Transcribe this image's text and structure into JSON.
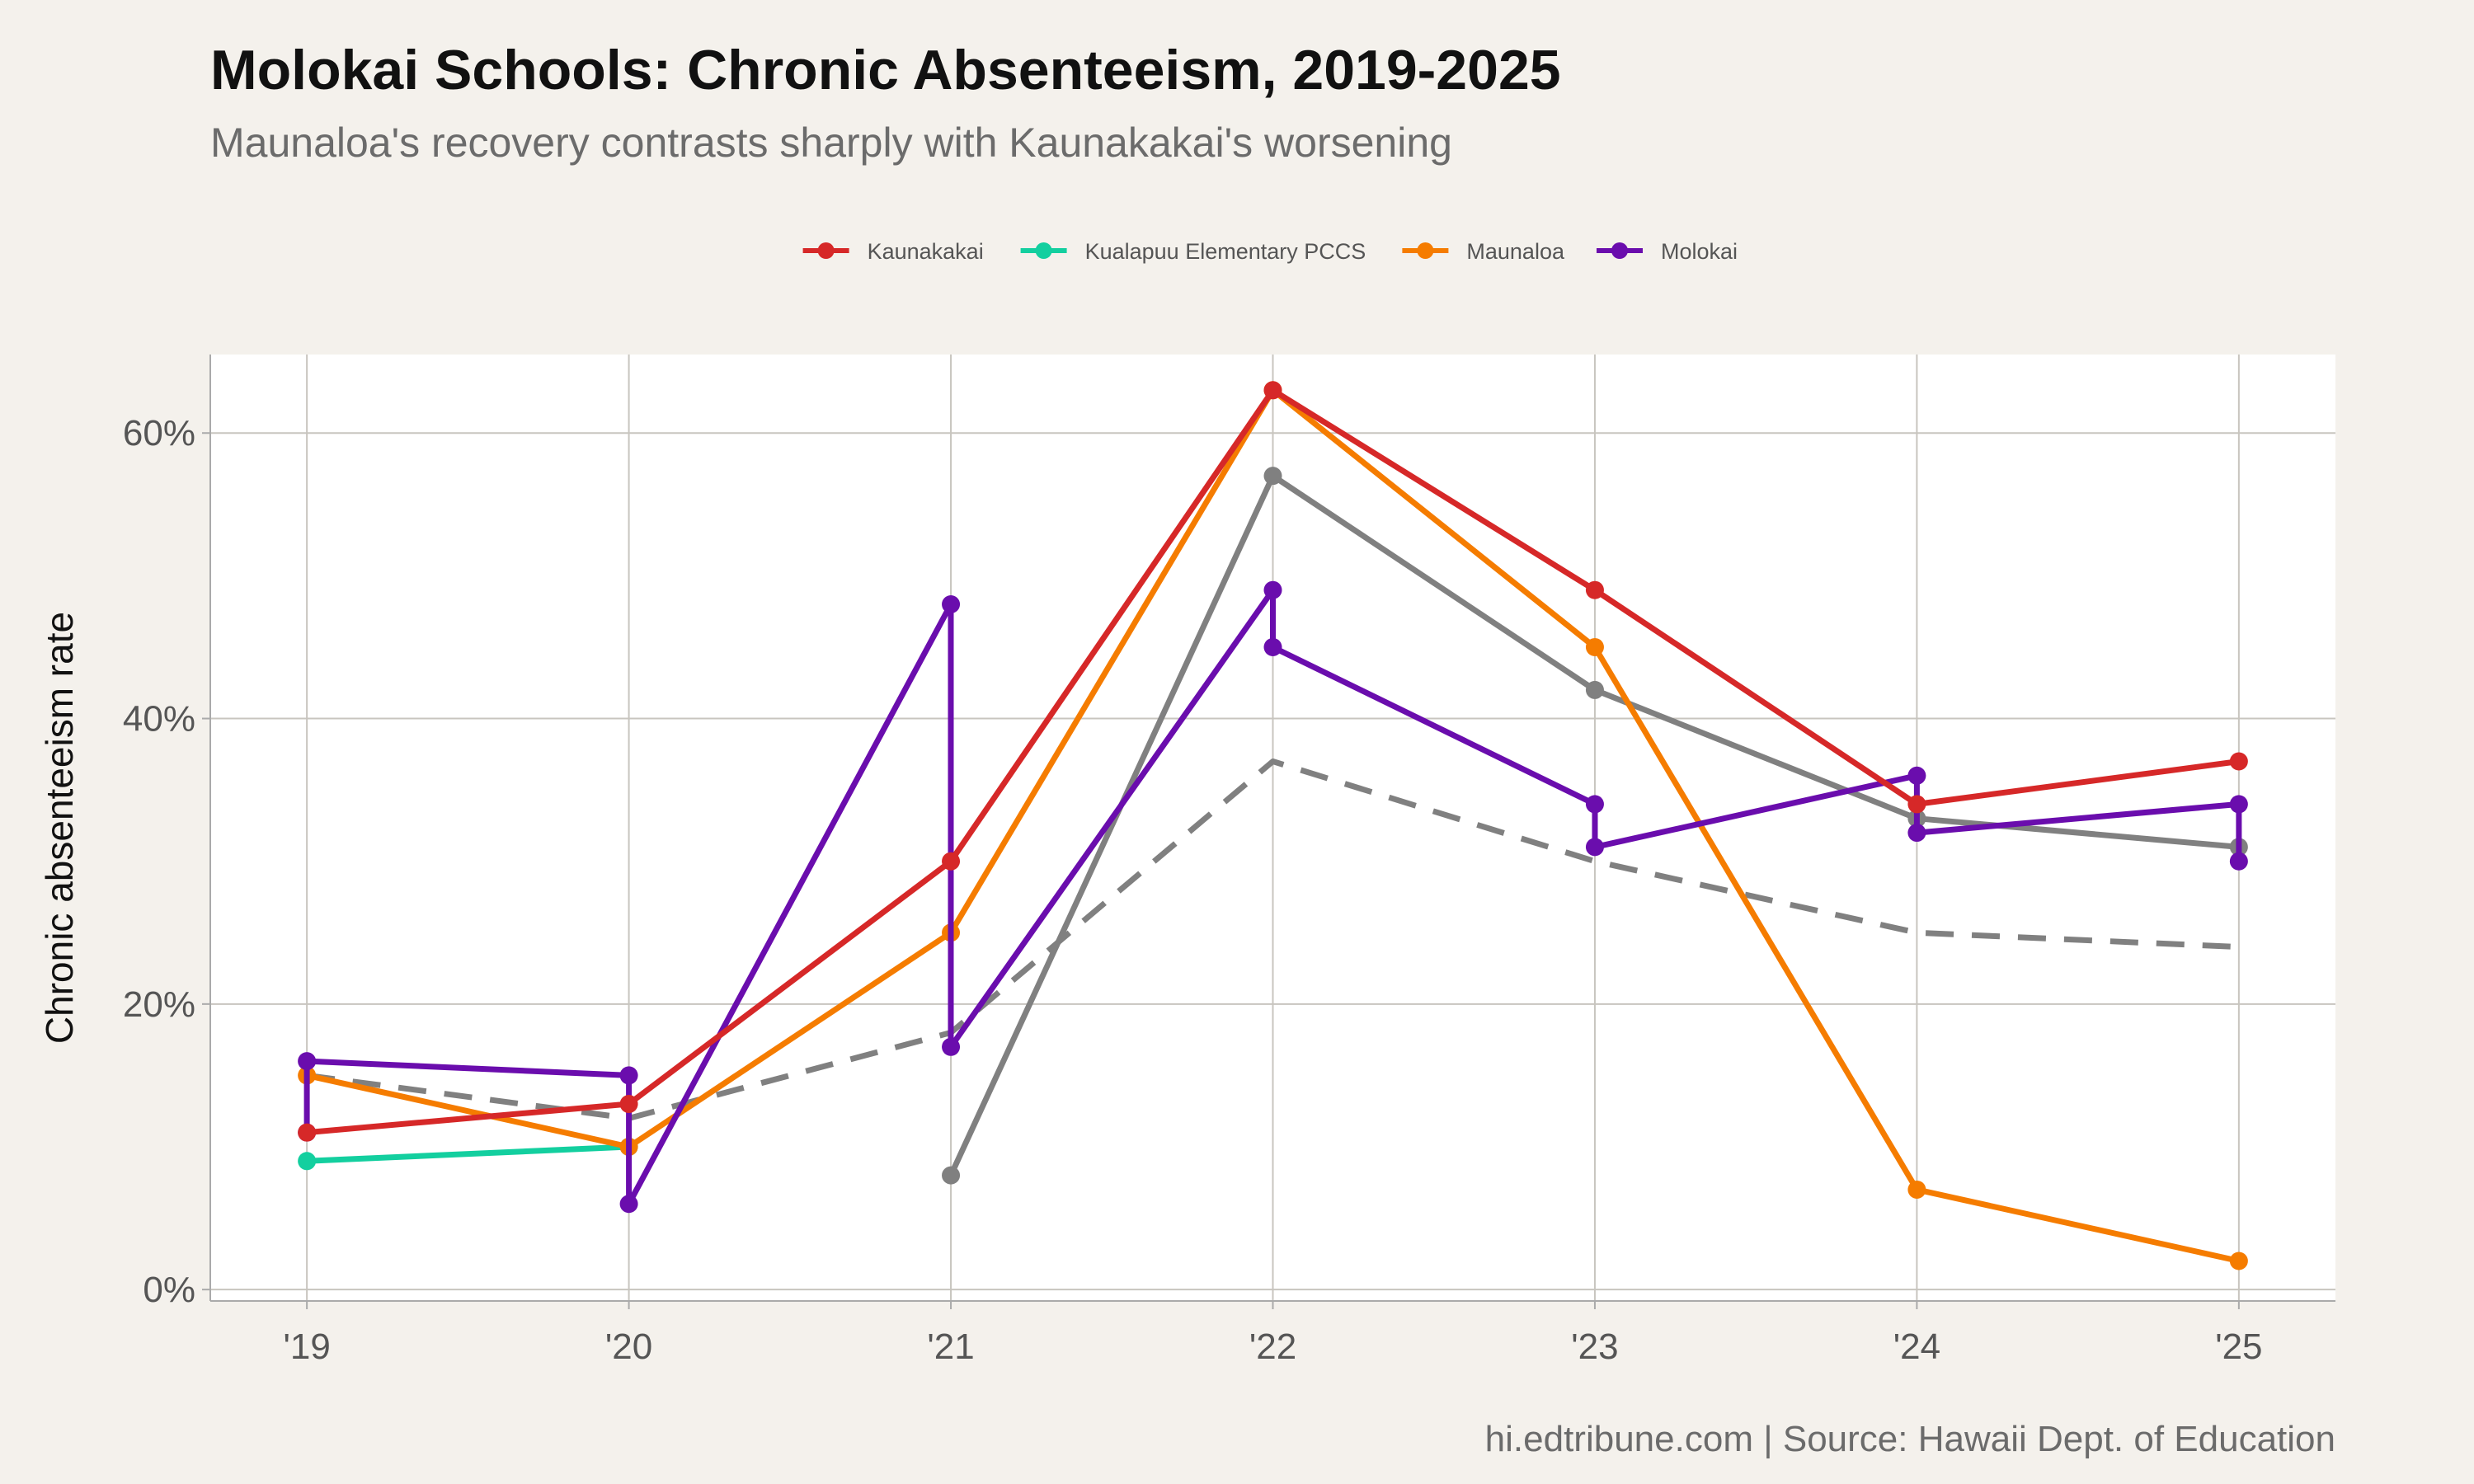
{
  "chart_data": {
    "type": "line",
    "title": "Molokai Schools: Chronic Absenteeism, 2019-2025",
    "subtitle": "Maunaloa's recovery contrasts sharply with Kaunakakai's worsening",
    "xlabel": "",
    "ylabel": "Chronic absenteeism rate",
    "caption": "hi.edtribune.com | Source: Hawaii Dept. of Education",
    "x": [
      2019,
      2020,
      2021,
      2022,
      2023,
      2024,
      2025
    ],
    "x_tick_labels": [
      "'19",
      "'20",
      "'21",
      "'22",
      "'23",
      "'24",
      "'25"
    ],
    "y_ticks": [
      0,
      0.2,
      0.4,
      0.6
    ],
    "y_tick_labels": [
      "0%",
      "20%",
      "40%",
      "60%"
    ],
    "xlim": [
      2018.7,
      2025.3
    ],
    "ylim": [
      -0.008,
      0.655
    ],
    "grid": true,
    "legend_position": "top",
    "series": [
      {
        "name": "Kaunakakai",
        "color": "#d62828",
        "style": "solid",
        "points": [
          [
            2019,
            0.11
          ],
          [
            2020,
            0.13
          ],
          [
            2021,
            0.3
          ],
          [
            2022,
            0.63
          ],
          [
            2023,
            0.49
          ],
          [
            2024,
            0.34
          ],
          [
            2025,
            0.37
          ]
        ]
      },
      {
        "name": "Kualapuu Elementary PCCS",
        "color": "#13cf9f",
        "style": "solid",
        "points": [
          [
            2019,
            0.09
          ],
          [
            2020,
            0.1
          ]
        ]
      },
      {
        "name": "Maunaloa",
        "color": "#f57c00",
        "style": "solid",
        "points": [
          [
            2019,
            0.15
          ],
          [
            2020,
            0.1
          ],
          [
            2021,
            0.25
          ],
          [
            2022,
            0.63
          ],
          [
            2023,
            0.45
          ],
          [
            2024,
            0.07
          ],
          [
            2025,
            0.02
          ]
        ]
      },
      {
        "name": "Molokai",
        "color": "#6a0dad",
        "style": "solid",
        "points": [
          [
            2019,
            0.11
          ],
          [
            2019,
            0.16
          ],
          [
            2020,
            0.15
          ],
          [
            2020,
            0.06
          ],
          [
            2021,
            0.48
          ],
          [
            2021,
            0.17
          ],
          [
            2022,
            0.49
          ],
          [
            2022,
            0.45
          ],
          [
            2023,
            0.34
          ],
          [
            2023,
            0.31
          ],
          [
            2024,
            0.36
          ],
          [
            2024,
            0.32
          ],
          [
            2025,
            0.34
          ],
          [
            2025,
            0.3
          ]
        ]
      },
      {
        "name": "",
        "color": "#808080",
        "style": "solid",
        "in_legend": false,
        "points": [
          [
            2021,
            0.08
          ],
          [
            2022,
            0.57
          ],
          [
            2023,
            0.42
          ],
          [
            2024,
            0.33
          ],
          [
            2025,
            0.31
          ]
        ]
      },
      {
        "name": "",
        "color": "#808080",
        "style": "dashed",
        "in_legend": false,
        "markers": false,
        "points": [
          [
            2019,
            0.15
          ],
          [
            2020,
            0.12
          ],
          [
            2021,
            0.18
          ],
          [
            2022,
            0.37
          ],
          [
            2023,
            0.3
          ],
          [
            2024,
            0.25
          ],
          [
            2025,
            0.24
          ]
        ]
      }
    ]
  }
}
